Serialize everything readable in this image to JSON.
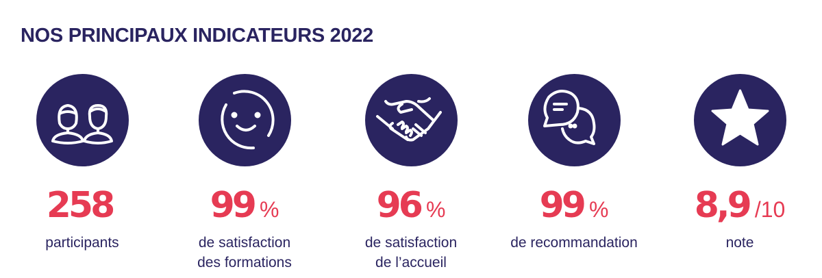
{
  "title": "NOS PRINCIPAUX INDICATEURS 2022",
  "colors": {
    "primary": "#2a2460",
    "accent": "#e63b53"
  },
  "indicators": [
    {
      "icon": "people-icon",
      "value": "258",
      "unit": "",
      "label_lines": [
        "participants"
      ]
    },
    {
      "icon": "smiley-icon",
      "value": "99",
      "unit": "%",
      "label_lines": [
        "de satisfaction",
        "des formations"
      ]
    },
    {
      "icon": "handshake-icon",
      "value": "96",
      "unit": "%",
      "label_lines": [
        "de satisfaction",
        "de l’accueil"
      ]
    },
    {
      "icon": "chat-bubbles-icon",
      "value": "99",
      "unit": "%",
      "label_lines": [
        "de recommandation"
      ]
    },
    {
      "icon": "star-icon",
      "value": "8,9",
      "unit": "/10",
      "label_lines": [
        "note"
      ]
    }
  ]
}
